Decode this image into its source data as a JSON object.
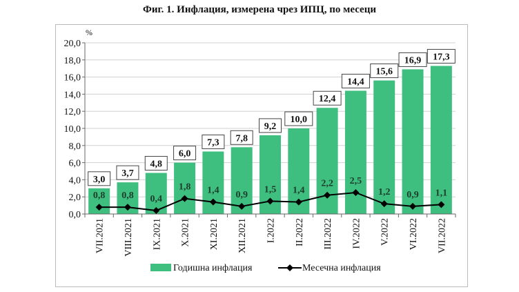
{
  "chart_data": {
    "type": "bar",
    "title": "Фиг. 1. Инфлация, измерена чрез ИПЦ, по месеци",
    "ylabel": "%",
    "xlabel": "",
    "ylim": [
      0,
      20
    ],
    "yticks": [
      "0,0",
      "2,0",
      "4,0",
      "6,0",
      "8,0",
      "10,0",
      "12,0",
      "14,0",
      "16,0",
      "18,0",
      "20,0"
    ],
    "grid": true,
    "legend_position": "bottom",
    "categories": [
      "VII.2021",
      "VIII.2021",
      "IX.2021",
      "X.2021",
      "XI.2021",
      "XII.2021",
      "I.2022",
      "II.2022",
      "III.2022",
      "IV.2022",
      "V.2022",
      "VI.2022",
      "VII.2022"
    ],
    "series": [
      {
        "name": "Годишна инфлация",
        "type": "bar",
        "color": "#3fbf7f",
        "values": [
          3.0,
          3.7,
          4.8,
          6.0,
          7.3,
          7.8,
          9.2,
          10.0,
          12.4,
          14.4,
          15.6,
          16.9,
          17.3
        ],
        "labels": [
          "3,0",
          "3,7",
          "4,8",
          "6,0",
          "7,3",
          "7,8",
          "9,2",
          "10,0",
          "12,4",
          "14,4",
          "15,6",
          "16,9",
          "17,3"
        ]
      },
      {
        "name": "Месечна инфлация",
        "type": "line",
        "color": "#000000",
        "values": [
          0.8,
          0.8,
          0.4,
          1.8,
          1.4,
          0.9,
          1.5,
          1.4,
          2.2,
          2.5,
          1.2,
          0.9,
          1.1
        ],
        "labels": [
          "0,8",
          "0,8",
          "0,4",
          "1,8",
          "1,4",
          "0,9",
          "1,5",
          "1,4",
          "2,2",
          "2,5",
          "1,2",
          "0,9",
          "1,1"
        ]
      }
    ]
  }
}
